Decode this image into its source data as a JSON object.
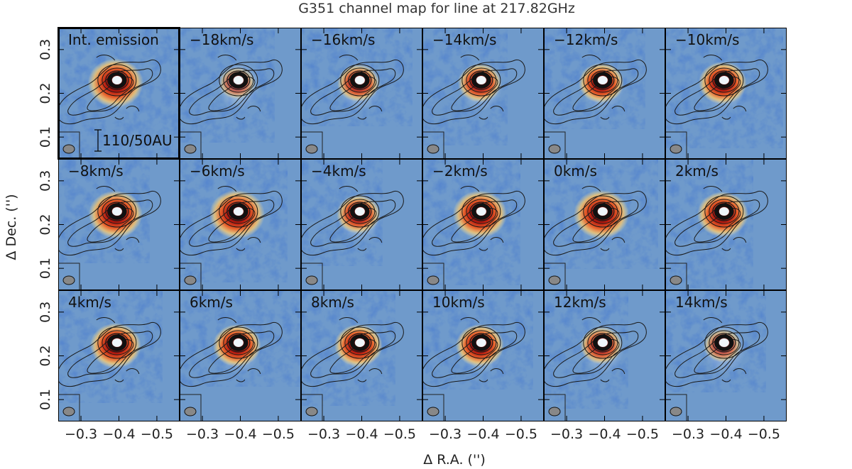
{
  "chart_data": {
    "type": "heatmap",
    "title": "G351 channel map for line at 217.82GHz",
    "xlabel": "Δ R.A. ('')",
    "ylabel": "Δ Dec. ('')",
    "x_ticks": [
      "−0.3",
      "−0.4",
      "−0.5"
    ],
    "y_ticks": [
      "0.1",
      "0.2",
      "0.3"
    ],
    "xlim": [
      -0.24,
      -0.56
    ],
    "ylim": [
      0.05,
      0.35
    ],
    "scale_bar": "110/50AU",
    "source_position": [
      -0.395,
      0.23
    ],
    "colormap": [
      "#1f3f9a",
      "#6f9acb",
      "#d6e6f2",
      "#ffffff",
      "#fbe9a0",
      "#f2a23e",
      "#c9231d",
      "#5a0b07"
    ],
    "panels": [
      {
        "label": "Int. emission",
        "peak": 1.0
      },
      {
        "label": "−18km/s",
        "peak": 0.35
      },
      {
        "label": "−16km/s",
        "peak": 0.55
      },
      {
        "label": "−14km/s",
        "peak": 0.6
      },
      {
        "label": "−12km/s",
        "peak": 0.65
      },
      {
        "label": "−10km/s",
        "peak": 0.75
      },
      {
        "label": "−8km/s",
        "peak": 0.95
      },
      {
        "label": "−6km/s",
        "peak": 1.0
      },
      {
        "label": "−4km/s",
        "peak": 0.6
      },
      {
        "label": "−2km/s",
        "peak": 0.95
      },
      {
        "label": "0km/s",
        "peak": 1.0
      },
      {
        "label": "2km/s",
        "peak": 0.85
      },
      {
        "label": "4km/s",
        "peak": 0.85
      },
      {
        "label": "6km/s",
        "peak": 0.75
      },
      {
        "label": "8km/s",
        "peak": 0.75
      },
      {
        "label": "10km/s",
        "peak": 0.75
      },
      {
        "label": "12km/s",
        "peak": 0.55
      },
      {
        "label": "14km/s",
        "peak": 0.4
      }
    ]
  }
}
